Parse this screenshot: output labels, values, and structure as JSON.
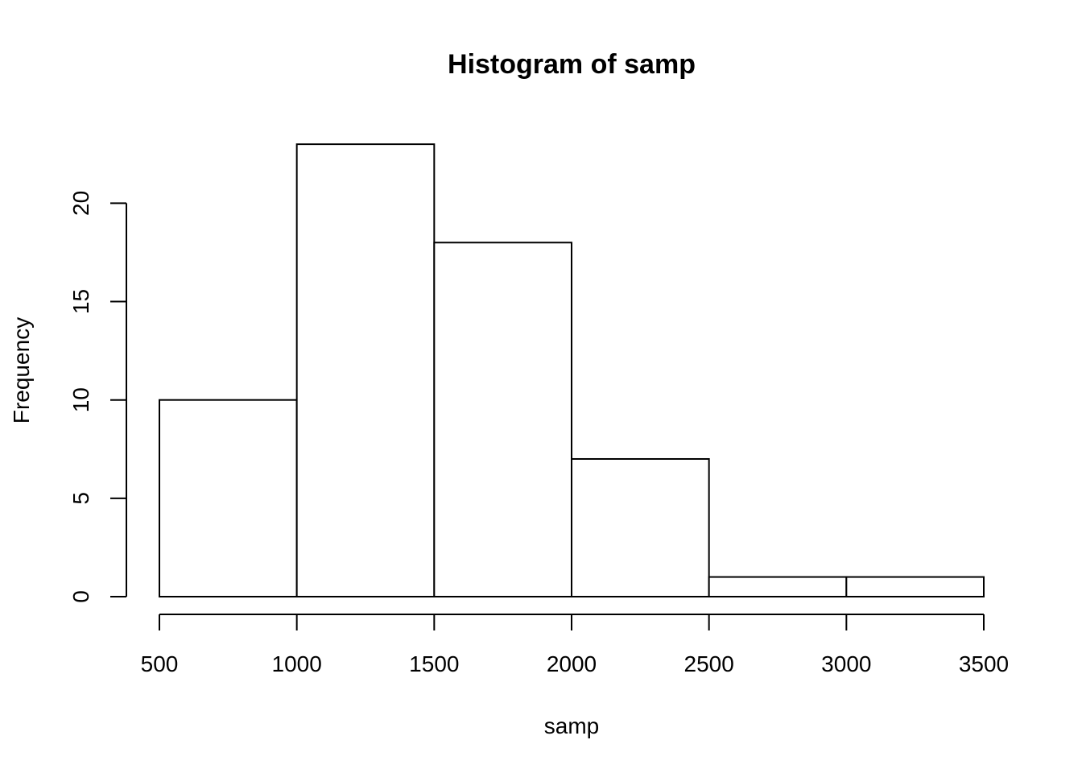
{
  "chart_data": {
    "type": "bar",
    "title": "Histogram of samp",
    "xlabel": "samp",
    "ylabel": "Frequency",
    "bins": [
      {
        "start": 500,
        "end": 1000,
        "count": 10
      },
      {
        "start": 1000,
        "end": 1500,
        "count": 23
      },
      {
        "start": 1500,
        "end": 2000,
        "count": 18
      },
      {
        "start": 2000,
        "end": 2500,
        "count": 7
      },
      {
        "start": 2500,
        "end": 3000,
        "count": 1
      },
      {
        "start": 3000,
        "end": 3500,
        "count": 1
      }
    ],
    "xticks": [
      500,
      1000,
      1500,
      2000,
      2500,
      3000,
      3500
    ],
    "yticks": [
      0,
      5,
      10,
      15,
      20
    ],
    "xlim": [
      500,
      3500
    ],
    "ylim": [
      0,
      23
    ],
    "grid": false,
    "colors": {
      "bar_fill": "#ffffff",
      "bar_stroke": "#000000"
    }
  }
}
